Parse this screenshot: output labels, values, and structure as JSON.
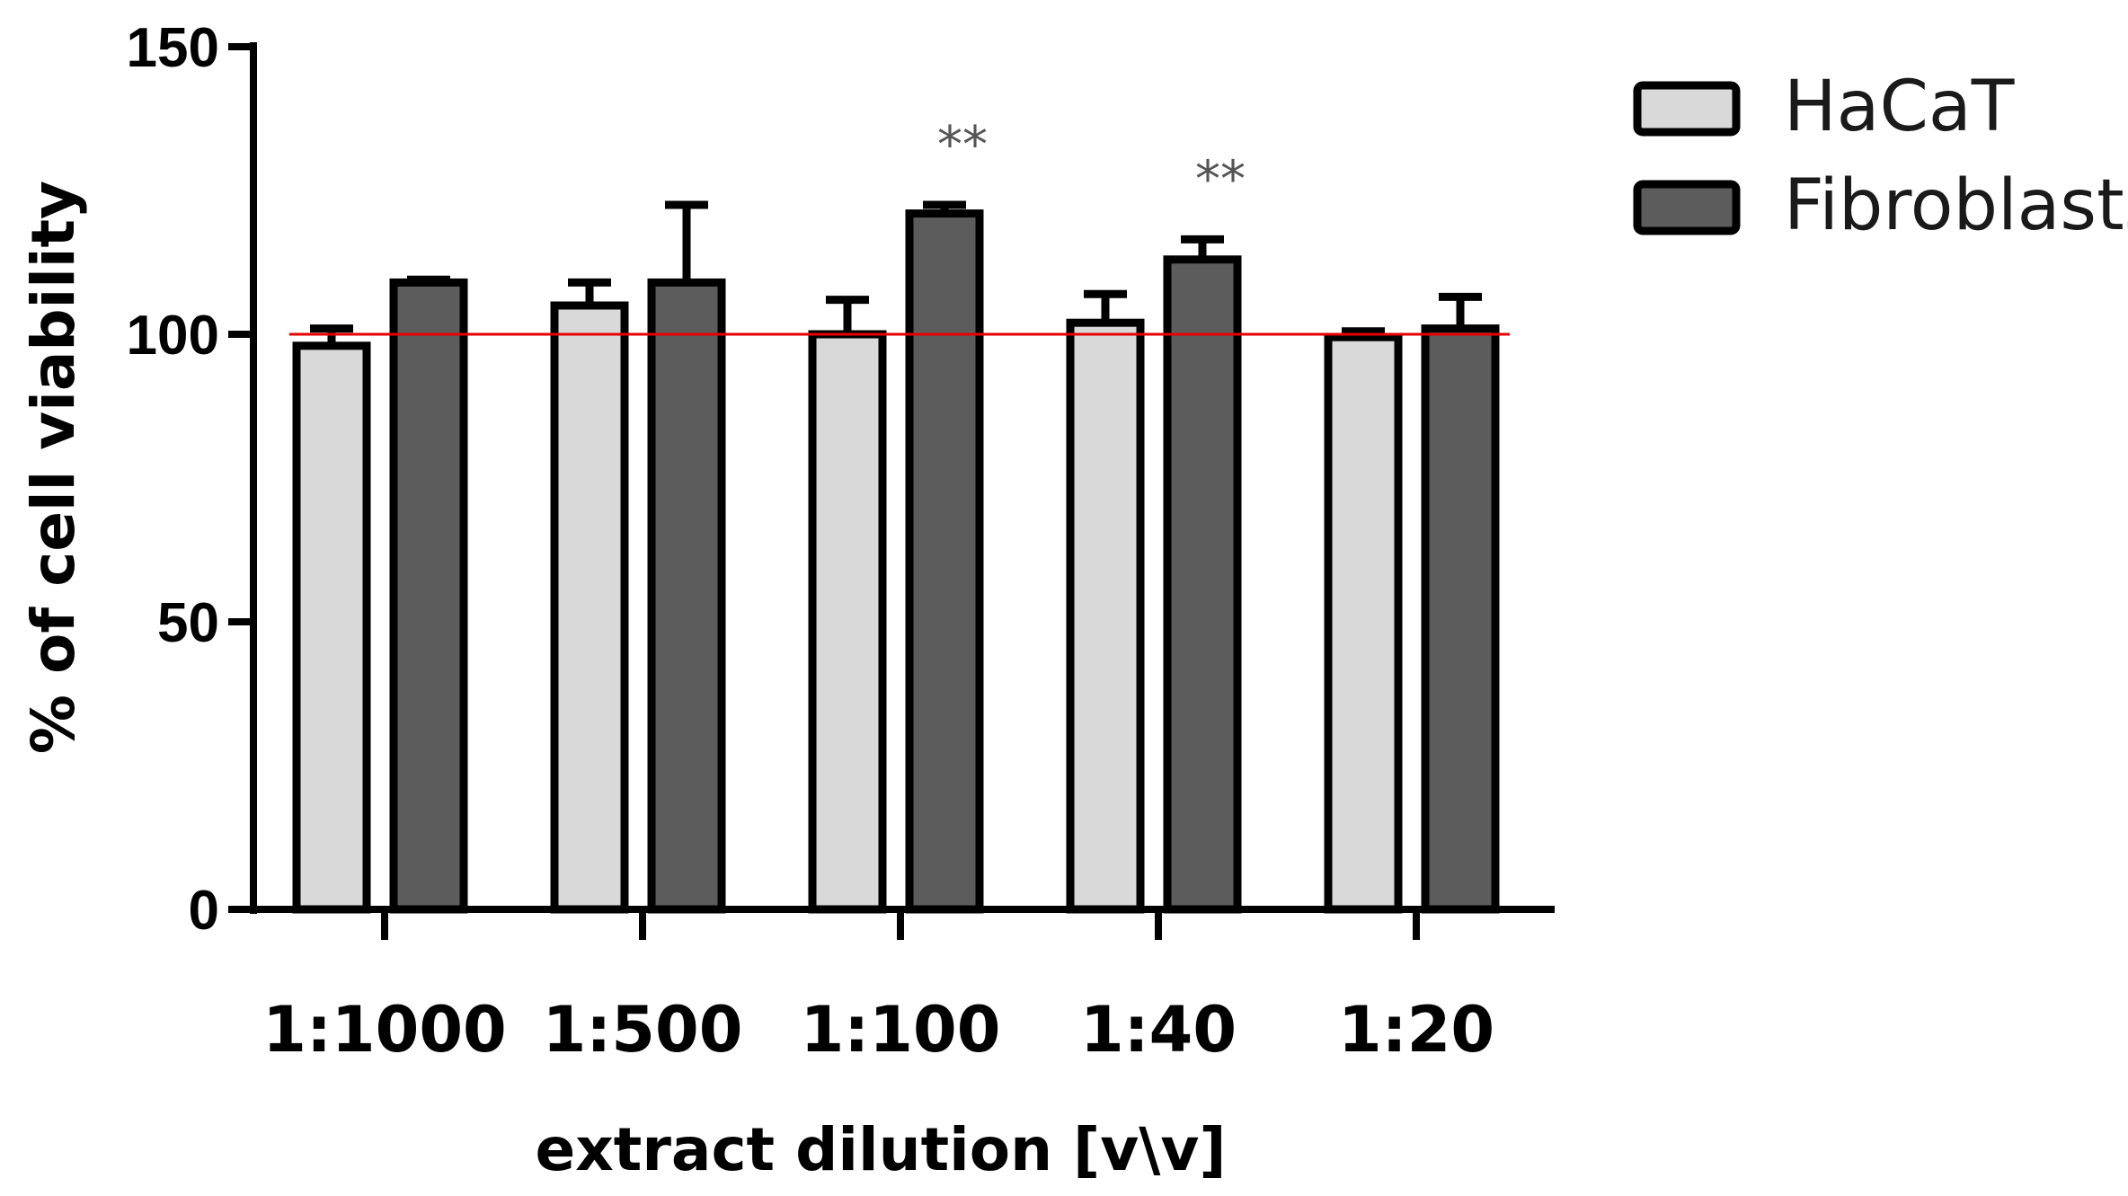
{
  "chart_data": {
    "type": "bar",
    "title": "",
    "xlabel": "extract dilution  [v\\v]",
    "ylabel": "% of cell viability",
    "ylim": [
      0,
      150
    ],
    "yticks": [
      0,
      50,
      100,
      150
    ],
    "categories": [
      "1:1000",
      "1:500",
      "1:100",
      "1:40",
      "1:20"
    ],
    "series": [
      {
        "name": "HaCaT",
        "color": "#d9d9d9",
        "values": [
          98,
          105,
          100,
          102,
          99.5
        ],
        "errors": [
          3,
          4,
          6,
          5,
          1
        ]
      },
      {
        "name": "Fibroblasts",
        "color": "#5c5c5c",
        "values": [
          109,
          109,
          121,
          113,
          101
        ],
        "errors": [
          0.5,
          13.5,
          1.5,
          3.5,
          5.5
        ]
      }
    ],
    "reference_line": {
      "value": 100,
      "color": "#e60000"
    },
    "significance": [
      {
        "category_index": 2,
        "series_index": 1,
        "label": "**"
      },
      {
        "category_index": 3,
        "series_index": 1,
        "label": "**"
      }
    ],
    "legend_position": "top-right"
  }
}
